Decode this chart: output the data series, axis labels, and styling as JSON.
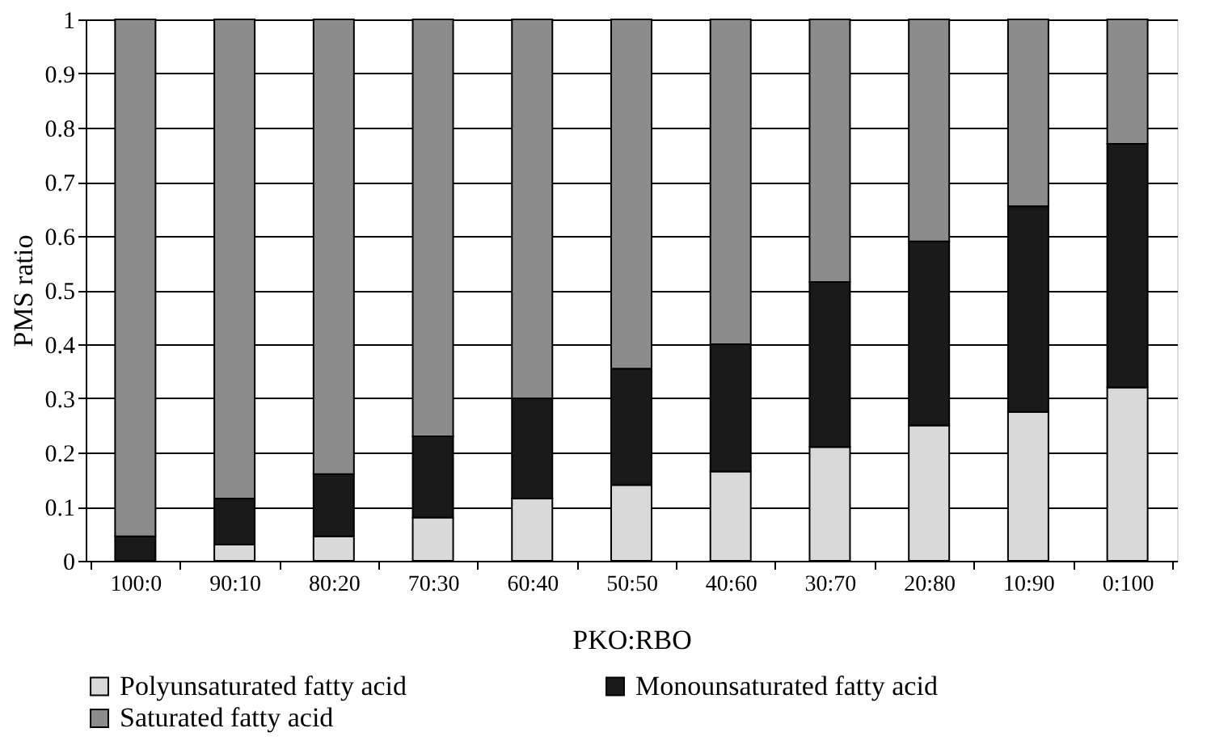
{
  "chart_data": {
    "type": "bar",
    "stacked": true,
    "xlabel": "PKO:RBO",
    "ylabel": "PMS ratio",
    "categories": [
      "100:0",
      "90:10",
      "80:20",
      "70:30",
      "60:40",
      "50:50",
      "40:60",
      "30:70",
      "20:80",
      "10:90",
      "0:100"
    ],
    "series": [
      {
        "name": "Polyunsaturated fatty acid",
        "color": "#d9d9d9",
        "values": [
          0,
          0.03,
          0.045,
          0.08,
          0.115,
          0.14,
          0.165,
          0.21,
          0.25,
          0.275,
          0.32
        ]
      },
      {
        "name": "Monounsaturated fatty acid",
        "color": "#1a1a1a",
        "values": [
          0.045,
          0.085,
          0.115,
          0.15,
          0.185,
          0.215,
          0.235,
          0.305,
          0.34,
          0.38,
          0.45
        ]
      },
      {
        "name": "Saturated fatty acid",
        "color": "#8c8c8c",
        "values": [
          0.955,
          0.885,
          0.84,
          0.77,
          0.7,
          0.645,
          0.6,
          0.485,
          0.41,
          0.345,
          0.23
        ]
      }
    ],
    "ylim": [
      0,
      1
    ],
    "yticks": [
      0,
      0.1,
      0.2,
      0.3,
      0.4,
      0.5,
      0.6,
      0.7,
      0.8,
      0.9,
      1
    ],
    "grid": "y",
    "legend": "bottom"
  }
}
